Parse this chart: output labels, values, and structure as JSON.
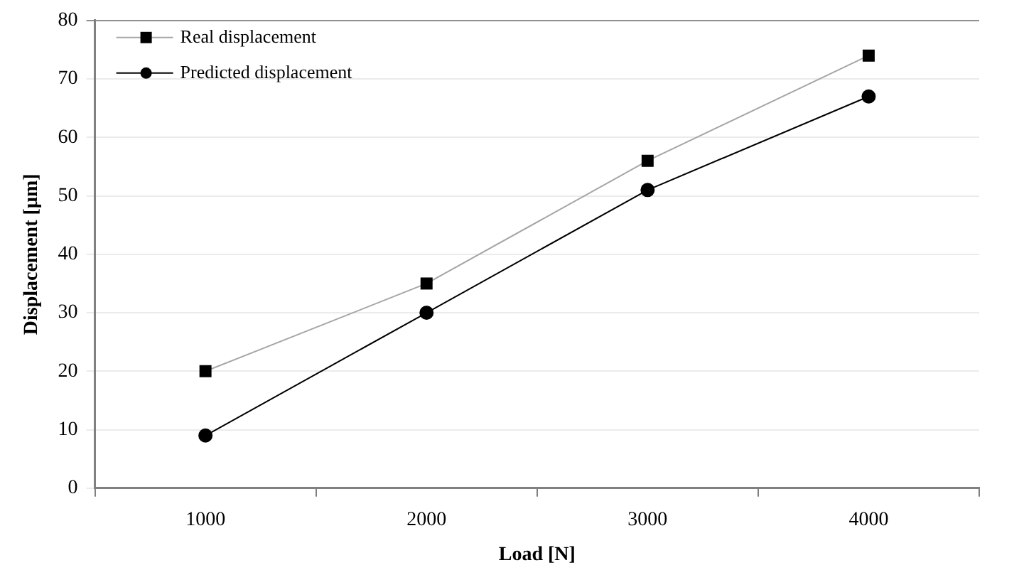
{
  "chart_data": {
    "type": "line",
    "xlabel": "Load [N]",
    "ylabel": "Displacement [µm]",
    "categories": [
      "1000",
      "2000",
      "3000",
      "4000"
    ],
    "series": [
      {
        "name": "Real displacement",
        "color": "#a6a6a6",
        "marker": "square",
        "values": [
          20,
          35,
          56,
          74
        ]
      },
      {
        "name": "Predicted displacement",
        "color": "#000000",
        "marker": "circle",
        "values": [
          9,
          30,
          51,
          67
        ]
      }
    ],
    "ylim": [
      0,
      80
    ],
    "yticks": [
      0,
      10,
      20,
      30,
      40,
      50,
      60,
      70,
      80
    ],
    "grid": "y",
    "legend": "top left"
  }
}
